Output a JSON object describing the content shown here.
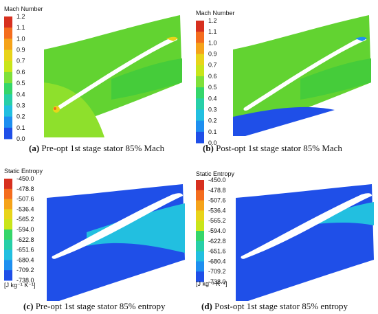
{
  "figure": {
    "panels": [
      {
        "id": "a",
        "caption_letter": "(a)",
        "caption_text": " Pre-opt 1st stage stator 85% Mach",
        "legend_title": "Mach Number",
        "legend_unit": "",
        "ticks": [
          "1.2",
          "1.1",
          "1.0",
          "0.9",
          "0.7",
          "0.6",
          "0.5",
          "0.4",
          "0.3",
          "0.2",
          "0.1",
          "0.0"
        ]
      },
      {
        "id": "b",
        "caption_letter": "(b)",
        "caption_text": " Post-opt 1st stage stator 85% Mach",
        "legend_title": "Mach Number",
        "legend_unit": "",
        "ticks": [
          "1.2",
          "1.1",
          "1.0",
          "0.9",
          "0.7",
          "0.6",
          "0.5",
          "0.4",
          "0.3",
          "0.2",
          "0.1",
          "0.0"
        ]
      },
      {
        "id": "c",
        "caption_letter": "(c)",
        "caption_text": " Pre-opt 1st stage stator 85% entropy",
        "legend_title": "Static Entropy",
        "legend_unit": "[J kg⁻¹ K⁻¹]",
        "ticks": [
          "-450.0",
          "-478.8",
          "-507.6",
          "-536.4",
          "-565.2",
          "-594.0",
          "-622.8",
          "-651.6",
          "-680.4",
          "-709.2",
          "-738.0"
        ]
      },
      {
        "id": "d",
        "caption_letter": "(d)",
        "caption_text": " Post-opt 1st stage stator 85% entropy",
        "legend_title": "Static Entropy",
        "legend_unit": "[J kg⁻¹ K⁻¹]",
        "ticks": [
          "-450.0",
          "-478.8",
          "-507.6",
          "-536.4",
          "-565.2",
          "-594.0",
          "-622.8",
          "-651.6",
          "-680.4",
          "-709.2",
          "-738.0"
        ]
      }
    ],
    "colormap": [
      "#d7301f",
      "#f46d1e",
      "#f5a31a",
      "#e8d41a",
      "#c9e51a",
      "#7fe03a",
      "#35d66a",
      "#27cfa8",
      "#22bfe0",
      "#1e8ff0",
      "#1f4fe8"
    ]
  }
}
